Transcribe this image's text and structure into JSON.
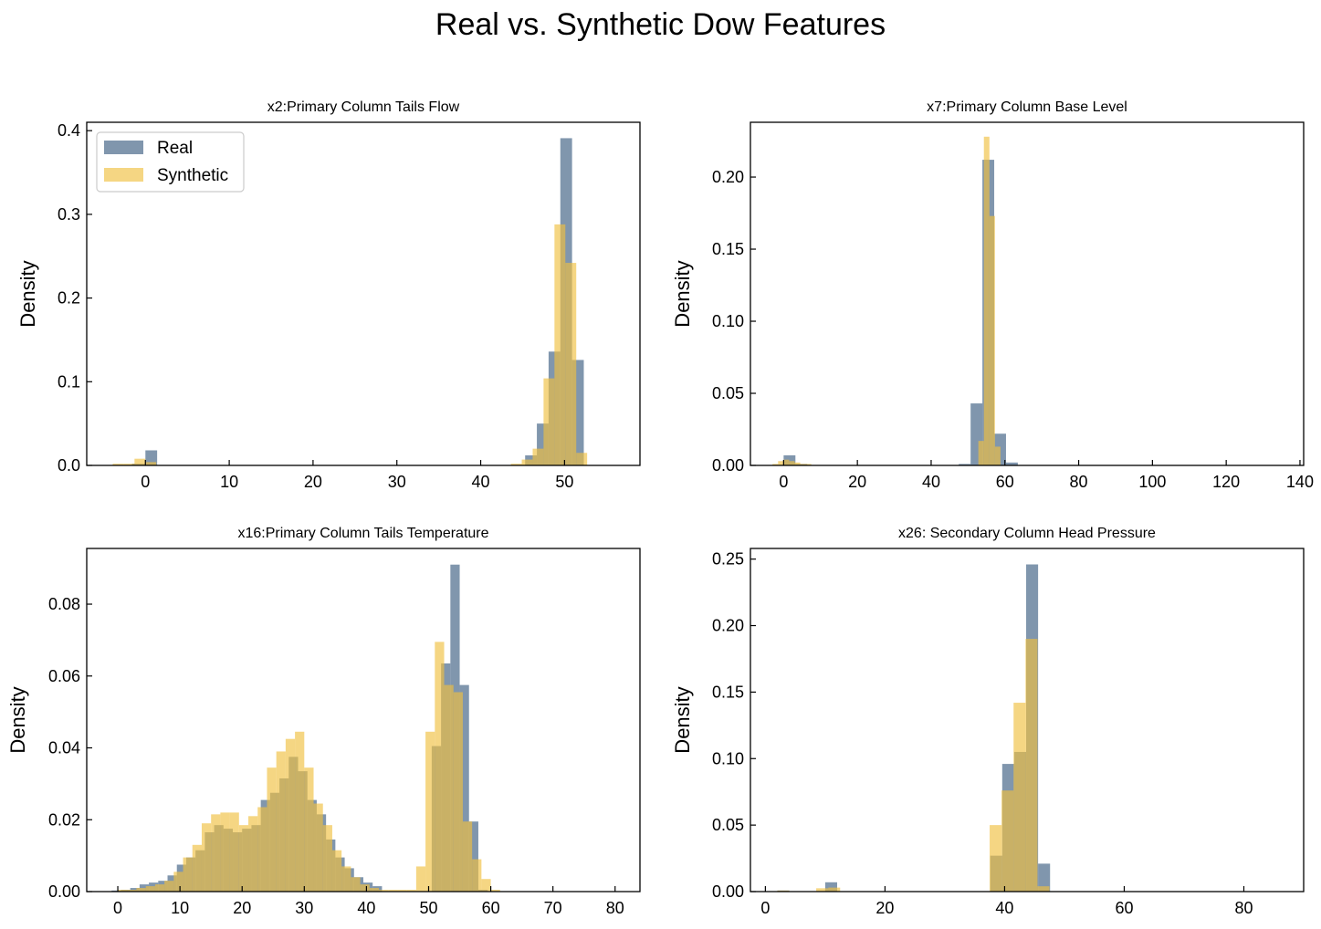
{
  "figure_title": "Real vs. Synthetic Dow Features",
  "colors": {
    "real": "#4a6a8a",
    "synthetic": "#f0c040",
    "real_alpha": 0.7,
    "synthetic_alpha": 0.65
  },
  "legend": {
    "placement": "upper-left",
    "entries": [
      "Real",
      "Synthetic"
    ]
  },
  "chart_data": [
    {
      "type": "histogram",
      "title": "x2:Primary Column Tails Flow",
      "xlabel": "",
      "ylabel": "Density",
      "xlim": [
        -7,
        59
      ],
      "ylim": [
        0,
        0.41
      ],
      "xticks": [
        0,
        10,
        20,
        30,
        40,
        50
      ],
      "xtick_labels": [
        "0",
        "10",
        "20",
        "30",
        "40",
        "50"
      ],
      "yticks": [
        0,
        0.1,
        0.2,
        0.3,
        0.4
      ],
      "ytick_labels": [
        "0.0",
        "0.1",
        "0.2",
        "0.3",
        "0.4"
      ],
      "series": [
        {
          "name": "Real",
          "bins": [
            [
              -1.6,
              0,
              0.002
            ],
            [
              0,
              1.4,
              0.018
            ],
            [
              45.3,
              46.7,
              0.012
            ],
            [
              46.7,
              48.1,
              0.05
            ],
            [
              48.1,
              49.5,
              0.136
            ],
            [
              49.5,
              50.9,
              0.391
            ],
            [
              50.9,
              52.3,
              0.126
            ]
          ]
        },
        {
          "name": "Synthetic",
          "bins": [
            [
              -3.9,
              -2.6,
              0.002
            ],
            [
              -2.6,
              -1.3,
              0.002
            ],
            [
              -1.3,
              0,
              0.008
            ],
            [
              0,
              1.3,
              0.004
            ],
            [
              43.6,
              44.9,
              0.002
            ],
            [
              44.9,
              46.2,
              0.007
            ],
            [
              46.2,
              47.5,
              0.02
            ],
            [
              47.5,
              48.8,
              0.104
            ],
            [
              48.8,
              50.1,
              0.288
            ],
            [
              50.1,
              51.4,
              0.242
            ],
            [
              51.4,
              52.7,
              0.015
            ]
          ]
        }
      ]
    },
    {
      "type": "histogram",
      "title": "x7:Primary Column Base Level",
      "xlabel": "",
      "ylabel": "Density",
      "xlim": [
        -9,
        141
      ],
      "ylim": [
        0,
        0.238
      ],
      "xticks": [
        0,
        20,
        40,
        60,
        80,
        100,
        120,
        140
      ],
      "xtick_labels": [
        "0",
        "20",
        "40",
        "60",
        "80",
        "100",
        "120",
        "140"
      ],
      "yticks": [
        0,
        0.05,
        0.1,
        0.15,
        0.2
      ],
      "ytick_labels": [
        "0.00",
        "0.05",
        "0.10",
        "0.15",
        "0.20"
      ],
      "series": [
        {
          "name": "Real",
          "bins": [
            [
              0,
              3.2,
              0.007
            ],
            [
              3.2,
              6.4,
              0.001
            ],
            [
              47.5,
              50.7,
              0.001
            ],
            [
              50.7,
              53.9,
              0.043
            ],
            [
              53.9,
              57.1,
              0.212
            ],
            [
              57.1,
              60.3,
              0.022
            ],
            [
              60.3,
              63.5,
              0.002
            ]
          ]
        },
        {
          "name": "Synthetic",
          "bins": [
            [
              -3,
              -1.5,
              0.001
            ],
            [
              -1.5,
              0,
              0.003
            ],
            [
              0,
              1.5,
              0.004
            ],
            [
              1.5,
              3,
              0.003
            ],
            [
              3,
              4.5,
              0.002
            ],
            [
              4.5,
              6,
              0.001
            ],
            [
              6,
              7.5,
              0.001
            ],
            [
              52.8,
              54.3,
              0.017
            ],
            [
              54.3,
              55.8,
              0.228
            ],
            [
              55.8,
              57.3,
              0.173
            ],
            [
              57.3,
              58.8,
              0.013
            ]
          ]
        }
      ]
    },
    {
      "type": "histogram",
      "title": "x16:Primary Column Tails Temperature",
      "xlabel": "",
      "ylabel": "Density",
      "xlim": [
        -5,
        84
      ],
      "ylim": [
        0,
        0.0955
      ],
      "xticks": [
        0,
        10,
        20,
        30,
        40,
        50,
        60,
        70,
        80
      ],
      "xtick_labels": [
        "0",
        "10",
        "20",
        "30",
        "40",
        "50",
        "60",
        "70",
        "80"
      ],
      "yticks": [
        0,
        0.02,
        0.04,
        0.06,
        0.08
      ],
      "ytick_labels": [
        "0.00",
        "0.02",
        "0.04",
        "0.06",
        "0.08"
      ],
      "series": [
        {
          "name": "Real",
          "bins": [
            [
              -1,
              0.5,
              0.0003
            ],
            [
              0.5,
              2,
              0.0005
            ],
            [
              2,
              3.5,
              0.001
            ],
            [
              3.5,
              5,
              0.002
            ],
            [
              5,
              6.5,
              0.0025
            ],
            [
              6.5,
              8,
              0.003
            ],
            [
              8,
              9.5,
              0.0045
            ],
            [
              9.5,
              11,
              0.0075
            ],
            [
              11,
              12.5,
              0.0095
            ],
            [
              12.5,
              14,
              0.0115
            ],
            [
              14,
              15.5,
              0.0165
            ],
            [
              15.5,
              17,
              0.0185
            ],
            [
              17,
              18.5,
              0.0175
            ],
            [
              18.5,
              20,
              0.0165
            ],
            [
              20,
              21.5,
              0.0175
            ],
            [
              21.5,
              23,
              0.0185
            ],
            [
              23,
              24.5,
              0.0255
            ],
            [
              24.5,
              26,
              0.0275
            ],
            [
              26,
              27.5,
              0.0315
            ],
            [
              27.5,
              29,
              0.0375
            ],
            [
              29,
              30.5,
              0.0335
            ],
            [
              30.5,
              32,
              0.0255
            ],
            [
              32,
              33.5,
              0.0215
            ],
            [
              33.5,
              35,
              0.0145
            ],
            [
              35,
              36.5,
              0.0095
            ],
            [
              36.5,
              38,
              0.0065
            ],
            [
              38,
              39.5,
              0.004
            ],
            [
              39.5,
              41,
              0.0025
            ],
            [
              41,
              42.5,
              0.0015
            ],
            [
              50.5,
              52,
              0.0405
            ],
            [
              52,
              53.5,
              0.0635
            ],
            [
              53.5,
              55,
              0.091
            ],
            [
              55,
              56.5,
              0.0575
            ],
            [
              56.5,
              58,
              0.0195
            ],
            [
              58,
              59.5,
              0.0005
            ]
          ]
        },
        {
          "name": "Synthetic",
          "bins": [
            [
              0,
              1.5,
              0.0005
            ],
            [
              1.5,
              3,
              0.0005
            ],
            [
              3,
              4.5,
              0.001
            ],
            [
              4.5,
              6,
              0.0015
            ],
            [
              6,
              7.5,
              0.002
            ],
            [
              7.5,
              9,
              0.003
            ],
            [
              9,
              10.5,
              0.0055
            ],
            [
              10.5,
              12,
              0.0095
            ],
            [
              12,
              13.5,
              0.013
            ],
            [
              13.5,
              15,
              0.019
            ],
            [
              15,
              16.5,
              0.0215
            ],
            [
              16.5,
              18,
              0.022
            ],
            [
              18,
              19.5,
              0.022
            ],
            [
              19.5,
              21,
              0.0185
            ],
            [
              21,
              22.5,
              0.021
            ],
            [
              22.5,
              24,
              0.0235
            ],
            [
              24,
              25.5,
              0.0345
            ],
            [
              25.5,
              27,
              0.039
            ],
            [
              27,
              28.5,
              0.0425
            ],
            [
              28.5,
              30,
              0.0445
            ],
            [
              30,
              31.5,
              0.0345
            ],
            [
              31.5,
              33,
              0.0245
            ],
            [
              33,
              34.5,
              0.0185
            ],
            [
              34.5,
              36,
              0.0115
            ],
            [
              36,
              37.5,
              0.007
            ],
            [
              37.5,
              39,
              0.004
            ],
            [
              39,
              40.5,
              0.002
            ],
            [
              40.5,
              42,
              0.001
            ],
            [
              42,
              43.5,
              0.0005
            ],
            [
              43.5,
              45,
              0.0005
            ],
            [
              45,
              46.5,
              0.0005
            ],
            [
              46.5,
              48,
              0.0005
            ],
            [
              48,
              49.5,
              0.007
            ],
            [
              49.5,
              51,
              0.0445
            ],
            [
              51,
              52.5,
              0.0695
            ],
            [
              52.5,
              54,
              0.0575
            ],
            [
              54,
              55.5,
              0.0555
            ],
            [
              55.5,
              57,
              0.0195
            ],
            [
              57,
              58.5,
              0.009
            ],
            [
              58.5,
              60,
              0.0035
            ],
            [
              60,
              61.5,
              0.0005
            ]
          ]
        }
      ]
    },
    {
      "type": "histogram",
      "title": "x26: Secondary Column Head Pressure",
      "xlabel": "",
      "ylabel": "Density",
      "xlim": [
        -2.5,
        90
      ],
      "ylim": [
        0,
        0.258
      ],
      "xticks": [
        0,
        20,
        40,
        60,
        80
      ],
      "xtick_labels": [
        "0",
        "20",
        "40",
        "60",
        "80"
      ],
      "yticks": [
        0,
        0.05,
        0.1,
        0.15,
        0.2,
        0.25
      ],
      "ytick_labels": [
        "0.00",
        "0.05",
        "0.10",
        "0.15",
        "0.20",
        "0.25"
      ],
      "series": [
        {
          "name": "Real",
          "bins": [
            [
              2,
              4,
              0.0008
            ],
            [
              10,
              12,
              0.007
            ],
            [
              37.6,
              39.6,
              0.027
            ],
            [
              39.6,
              41.6,
              0.096
            ],
            [
              41.6,
              43.6,
              0.105
            ],
            [
              43.6,
              45.6,
              0.246
            ],
            [
              45.6,
              47.6,
              0.021
            ]
          ]
        },
        {
          "name": "Synthetic",
          "bins": [
            [
              2,
              4,
              0.0008
            ],
            [
              8.5,
              10.5,
              0.0025
            ],
            [
              10.5,
              12.5,
              0.003
            ],
            [
              37.5,
              39.5,
              0.05
            ],
            [
              39.5,
              41.5,
              0.076
            ],
            [
              41.5,
              43.5,
              0.142
            ],
            [
              43.5,
              45.5,
              0.19
            ],
            [
              45.5,
              47.5,
              0.004
            ]
          ]
        }
      ]
    }
  ]
}
